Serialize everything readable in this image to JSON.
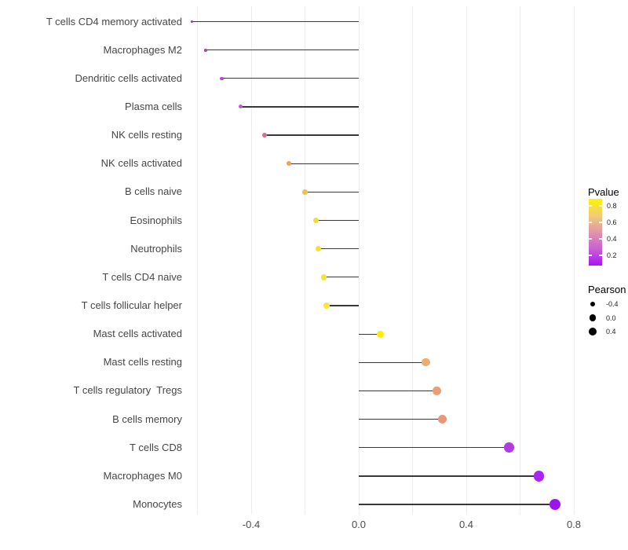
{
  "chart_data": {
    "type": "lollipop",
    "title": "",
    "xlabel": "",
    "ylabel": "",
    "x_ticks": [
      {
        "value": -0.4,
        "label": "-0.4"
      },
      {
        "value": 0.0,
        "label": "0.0"
      },
      {
        "value": 0.4,
        "label": "0.4"
      },
      {
        "value": 0.8,
        "label": "0.8"
      }
    ],
    "gridline_values": [
      -0.6,
      -0.4,
      -0.2,
      0.0,
      0.2,
      0.4,
      0.6,
      0.8
    ],
    "xlim": [
      -0.69,
      0.81
    ],
    "grid": "vertical-only",
    "legend_position": "right",
    "encoding_note": "dot size = Pearson correlation, dot color = Pvalue",
    "rows": [
      {
        "label": "T cells CD4 memory activated",
        "pearson": -0.62,
        "pvalue_approx": 0.18,
        "color": "#9933B5"
      },
      {
        "label": "Macrophages M2",
        "pearson": -0.57,
        "pvalue_approx": 0.22,
        "color": "#A73CC8"
      },
      {
        "label": "Dendritic cells activated",
        "pearson": -0.51,
        "pvalue_approx": 0.26,
        "color": "#B14CC8"
      },
      {
        "label": "Plasma cells",
        "pearson": -0.44,
        "pvalue_approx": 0.3,
        "color": "#C05BC2"
      },
      {
        "label": "NK cells resting",
        "pearson": -0.35,
        "pvalue_approx": 0.42,
        "color": "#D4708E"
      },
      {
        "label": "NK cells activated",
        "pearson": -0.26,
        "pvalue_approx": 0.6,
        "color": "#E8A263"
      },
      {
        "label": "B cells naive",
        "pearson": -0.2,
        "pvalue_approx": 0.7,
        "color": "#EEC153"
      },
      {
        "label": "Eosinophils",
        "pearson": -0.16,
        "pvalue_approx": 0.78,
        "color": "#F2DC3A"
      },
      {
        "label": "Neutrophils",
        "pearson": -0.15,
        "pvalue_approx": 0.79,
        "color": "#F4E12E"
      },
      {
        "label": "T cells CD4 naive",
        "pearson": -0.13,
        "pvalue_approx": 0.79,
        "color": "#F4E43A"
      },
      {
        "label": "T cells follicular helper",
        "pearson": -0.12,
        "pvalue_approx": 0.8,
        "color": "#F5E73B"
      },
      {
        "label": "Mast cells activated",
        "pearson": 0.08,
        "pvalue_approx": 0.86,
        "color": "#FBEE06"
      },
      {
        "label": "Mast cells resting",
        "pearson": 0.25,
        "pvalue_approx": 0.62,
        "color": "#ECAC72"
      },
      {
        "label": "T cells regulatory  Tregs",
        "pearson": 0.29,
        "pvalue_approx": 0.57,
        "color": "#E89F79"
      },
      {
        "label": "B cells memory",
        "pearson": 0.31,
        "pvalue_approx": 0.55,
        "color": "#E59A7C"
      },
      {
        "label": "T cells CD8",
        "pearson": 0.56,
        "pvalue_approx": 0.2,
        "color": "#B13AE0"
      },
      {
        "label": "Macrophages M0",
        "pearson": 0.67,
        "pvalue_approx": 0.12,
        "color": "#A826EF"
      },
      {
        "label": "Monocytes",
        "pearson": 0.73,
        "pvalue_approx": 0.07,
        "color": "#9C15F0"
      }
    ]
  },
  "legend": {
    "pvalue": {
      "title": "Pvalue",
      "tick_labels": [
        "0.8",
        "0.6",
        "0.4",
        "0.2"
      ],
      "gradient_top_to_bottom": [
        "#FDF403",
        "#F2CC76",
        "#E295AB",
        "#C95FD3",
        "#AB13F9"
      ]
    },
    "pearson": {
      "title": "Pearson",
      "dot_color": "#000000",
      "items": [
        {
          "label": "-0.4",
          "value": -0.4
        },
        {
          "label": "0.0",
          "value": 0.0
        },
        {
          "label": "0.4",
          "value": 0.4
        }
      ]
    }
  }
}
